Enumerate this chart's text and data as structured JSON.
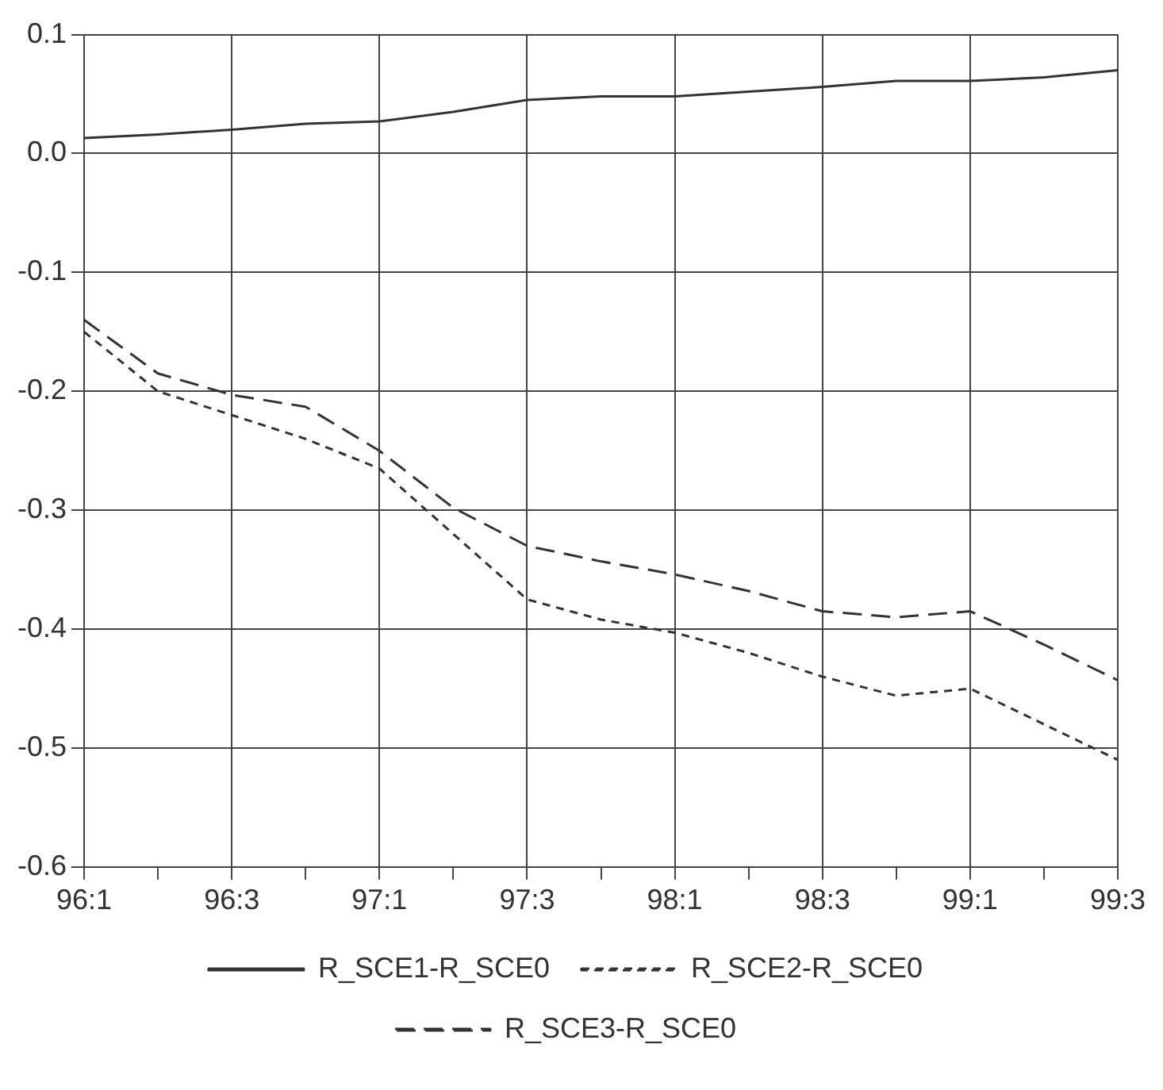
{
  "chart_data": {
    "type": "line",
    "categories": [
      "96:1",
      null,
      "96:3",
      null,
      "97:1",
      null,
      "97:3",
      null,
      "98:1",
      null,
      "98:3",
      null,
      "99:1",
      null,
      "99:3"
    ],
    "series": [
      {
        "name": "R_SCE1-R_SCE0",
        "color": "#333333",
        "line_style": "solid",
        "values": [
          0.013,
          0.016,
          0.02,
          0.025,
          0.027,
          0.035,
          0.045,
          0.048,
          0.048,
          0.052,
          0.056,
          0.061,
          0.061,
          0.064,
          0.07
        ]
      },
      {
        "name": "R_SCE2-R_SCE0",
        "color": "#333333",
        "line_style": "dotted",
        "values": [
          -0.15,
          -0.2,
          -0.22,
          -0.24,
          -0.265,
          -0.32,
          -0.375,
          -0.392,
          -0.403,
          -0.42,
          -0.44,
          -0.456,
          -0.45,
          -0.48,
          -0.51
        ]
      },
      {
        "name": "R_SCE3-R_SCE0",
        "color": "#333333",
        "line_style": "dashed",
        "values": [
          -0.14,
          -0.185,
          -0.203,
          -0.213,
          -0.25,
          -0.298,
          -0.33,
          -0.343,
          -0.354,
          -0.368,
          -0.385,
          -0.39,
          -0.385,
          -0.413,
          -0.443
        ]
      }
    ],
    "ylim": [
      -0.6,
      0.1
    ],
    "yticks": [
      -0.6,
      -0.5,
      -0.4,
      -0.3,
      -0.2,
      -0.1,
      {
        "value": 0,
        "label": "0.0"
      },
      0.1
    ],
    "grid": true,
    "legend": "bottom",
    "marker": "none"
  }
}
